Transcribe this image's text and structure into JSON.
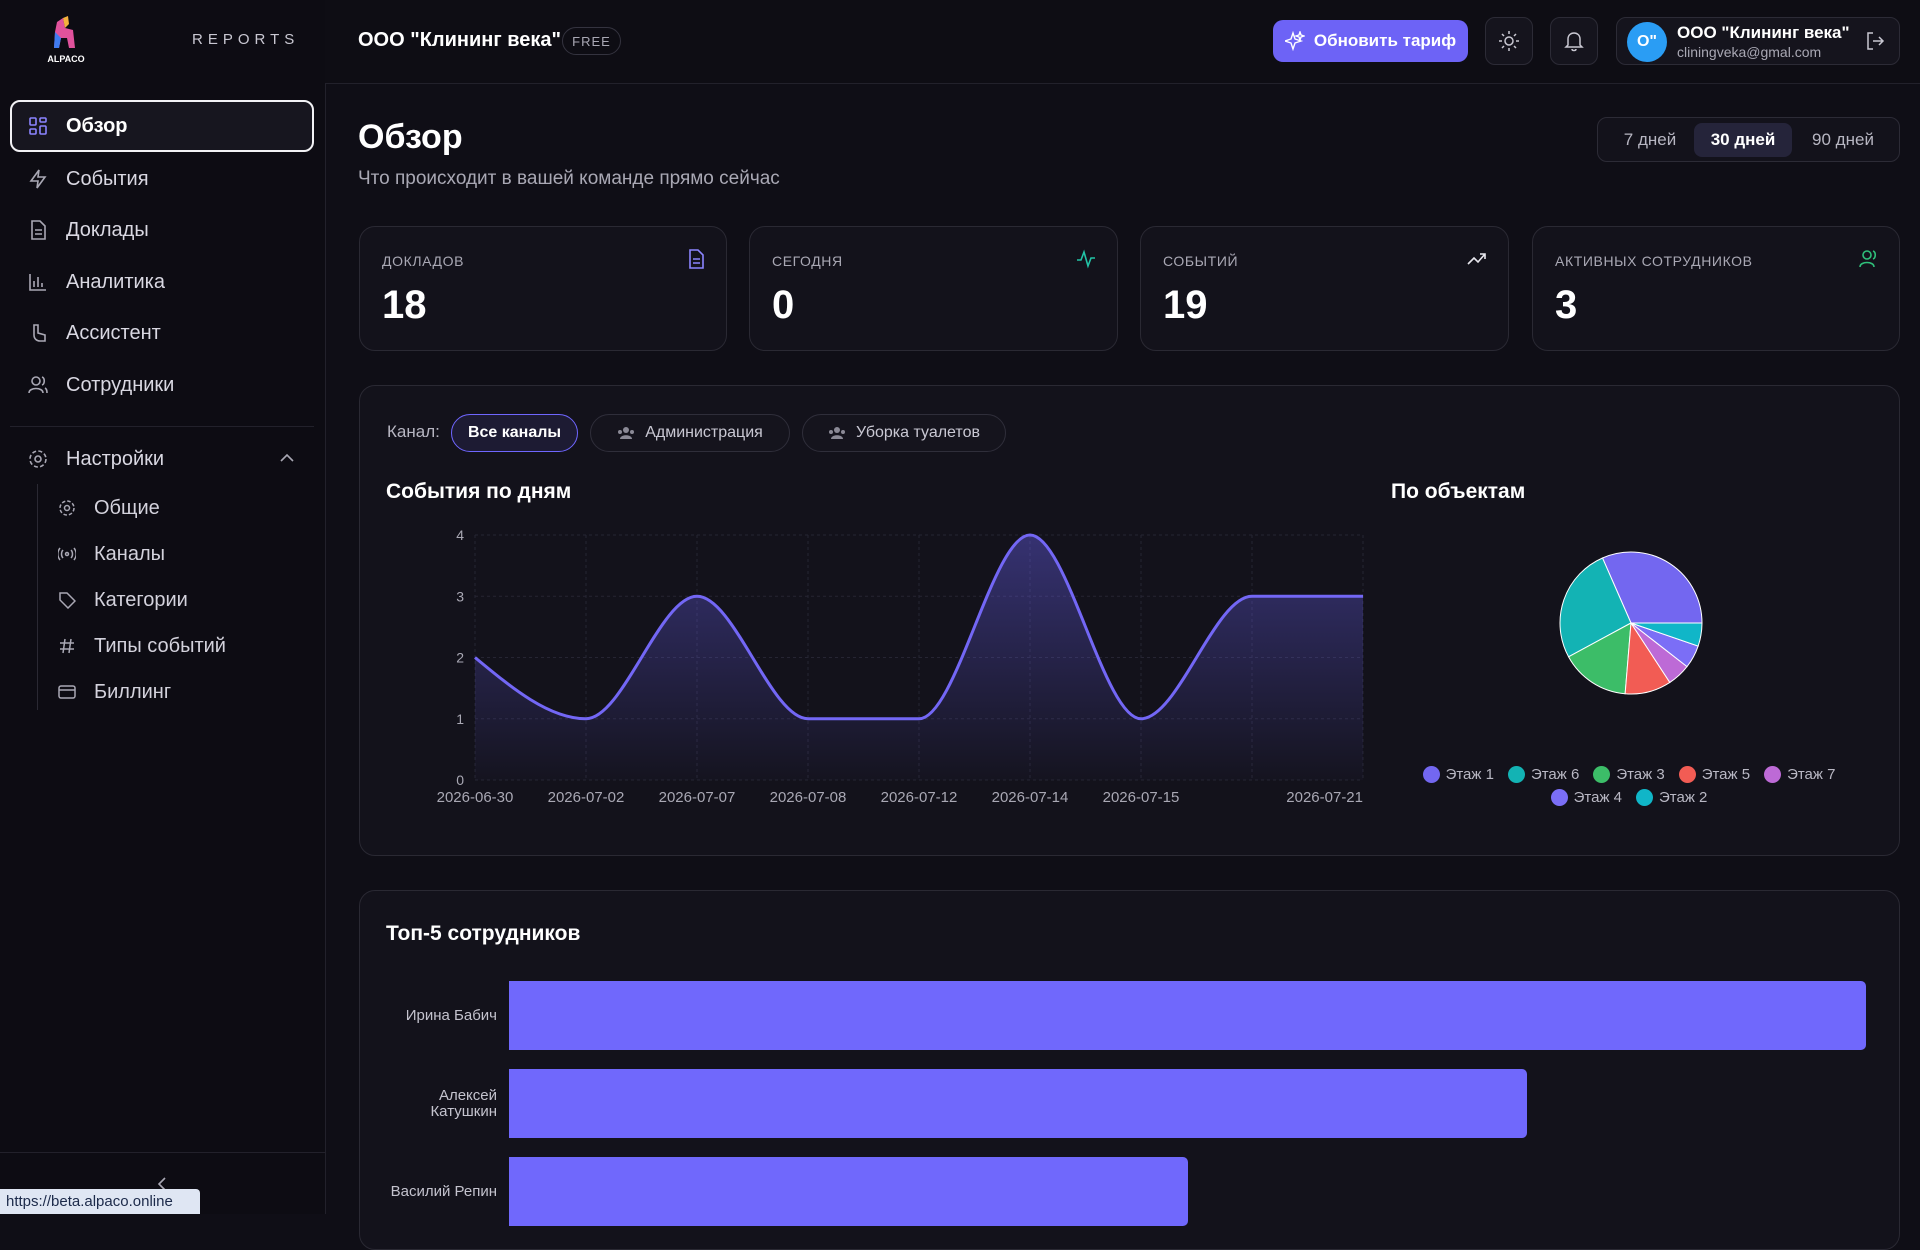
{
  "sidebar": {
    "logo": "ALPACO",
    "brand": "REPORTS",
    "nav": [
      "Обзор",
      "События",
      "Доклады",
      "Аналитика",
      "Ассистент",
      "Сотрудники"
    ],
    "settings": {
      "label": "Настройки",
      "items": [
        "Общие",
        "Каналы",
        "Категории",
        "Типы событий",
        "Биллинг"
      ]
    }
  },
  "header": {
    "company": "ООО \"Клининг века\"",
    "plan": "FREE",
    "upgrade": "Обновить тариф",
    "avatar": "О\"",
    "user": "ООО \"Клининг века\"",
    "email": "cliningveka@gmal.com"
  },
  "overview": {
    "title": "Обзор",
    "subtitle": "Что происходит в вашей команде прямо сейчас",
    "periods": [
      "7 дней",
      "30 дней",
      "90 дней"
    ]
  },
  "stats": [
    {
      "label": "ДОКЛАДОВ",
      "value": 18
    },
    {
      "label": "СЕГОДНЯ",
      "value": 0
    },
    {
      "label": "СОБЫТИЙ",
      "value": 19
    },
    {
      "label": "АКТИВНЫХ СОТРУДНИКОВ",
      "value": 3
    }
  ],
  "channels": {
    "label": "Канал:",
    "options": [
      "Все каналы",
      "Администрация",
      "Уборка туалетов"
    ]
  },
  "chart_data": [
    {
      "type": "line",
      "title": "События по дням",
      "categories": [
        "2026-06-30",
        "2026-07-02",
        "2026-07-07",
        "2026-07-08",
        "2026-07-12",
        "2026-07-14",
        "2026-07-15",
        null,
        "2026-07-21"
      ],
      "values": [
        2,
        1,
        3,
        1,
        1,
        4,
        1,
        3,
        3
      ],
      "color": "#7367f5",
      "ylim": [
        0,
        4
      ],
      "yticks": [
        0,
        1,
        2,
        3,
        4
      ],
      "grid": true
    },
    {
      "type": "pie",
      "title": "По объектам",
      "categories": [
        "Этаж 1",
        "Этаж 6",
        "Этаж 3",
        "Этаж 5",
        "Этаж 7",
        "Этаж 4",
        "Этаж 2"
      ],
      "values": [
        6,
        5,
        3,
        2,
        1,
        1,
        1
      ],
      "colors": [
        "#7367f0",
        "#13b3b4",
        "#3cbd68",
        "#f25c54",
        "#bd6ad6",
        "#7b6ef6",
        "#10b6c8"
      ]
    },
    {
      "type": "bar",
      "orientation": "horizontal",
      "title": "Топ-5 сотрудников",
      "categories": [
        "Ирина Бабич",
        "Алексей Катушкин",
        "Василий Репин"
      ],
      "values": [
        4,
        3,
        2
      ],
      "color": "#7068fc",
      "xlim": [
        0,
        4
      ]
    }
  ],
  "status_url": "https://beta.alpaco.online"
}
